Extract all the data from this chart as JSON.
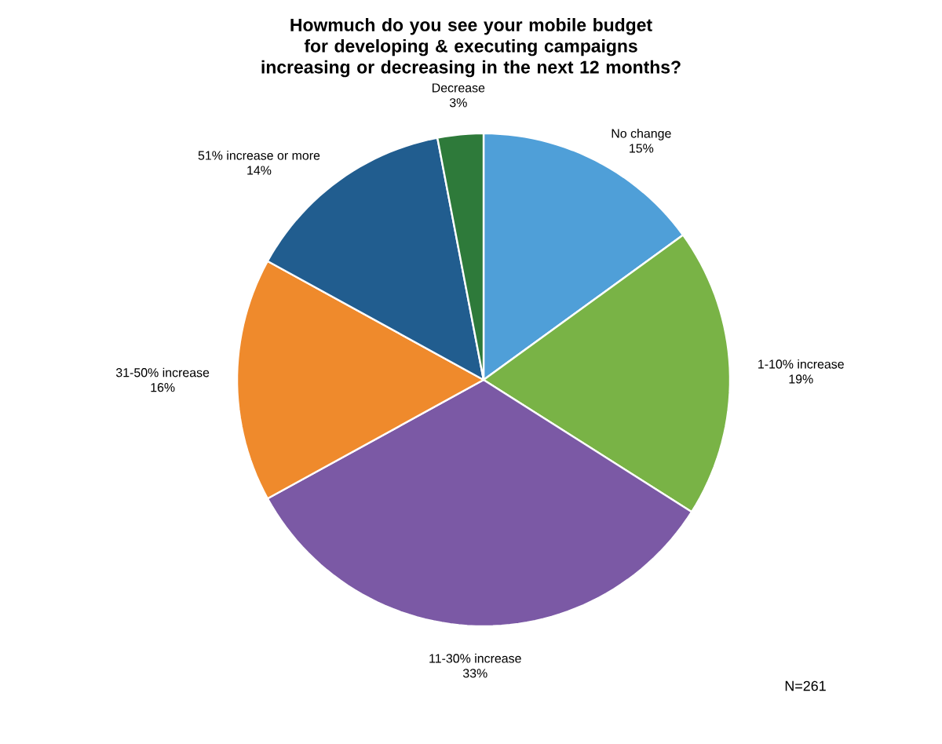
{
  "chart_data": {
    "type": "pie",
    "title": "Howmuch do you see your mobile budget for developing & executing campaigns increasing or decreasing in the next 12 months?",
    "categories": [
      "No change",
      "1-10% increase",
      "11-30% increase",
      "31-50% increase",
      "51% increase or more",
      "Decrease"
    ],
    "values": [
      15,
      19,
      33,
      16,
      14,
      3
    ],
    "colors": [
      "#4f9fd8",
      "#79b346",
      "#7b59a5",
      "#ef8a2c",
      "#215d8f",
      "#2e7a3a"
    ],
    "value_labels": [
      "15%",
      "19%",
      "33%",
      "16%",
      "14%",
      "3%"
    ],
    "annotations": [
      "N=261"
    ]
  }
}
